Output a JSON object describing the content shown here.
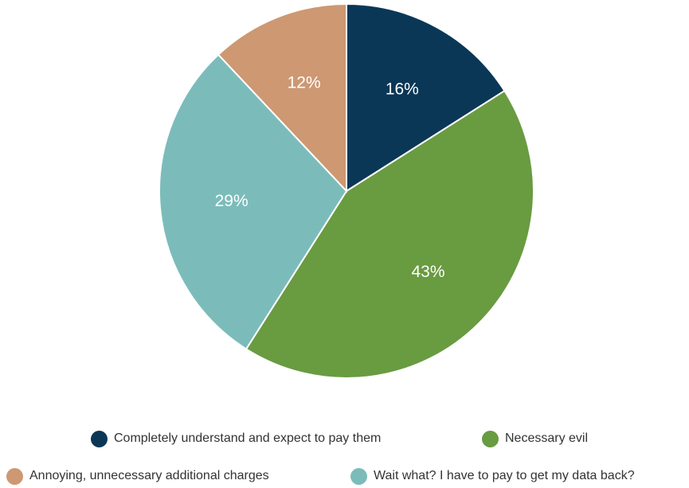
{
  "chart_data": {
    "type": "pie",
    "title": "",
    "start_angle_deg": 0,
    "direction": "clockwise",
    "slices": [
      {
        "label": "Completely understand and expect to pay them",
        "value": 16,
        "display": "16%",
        "color": "#0b3756"
      },
      {
        "label": "Necessary evil",
        "value": 43,
        "display": "43%",
        "color": "#699b41"
      },
      {
        "label": "Wait what? I have to pay to get my data back?",
        "value": 29,
        "display": "29%",
        "color": "#7bbcbb"
      },
      {
        "label": "Annoying, unnecessary additional charges",
        "value": 12,
        "display": "12%",
        "color": "#cd9872"
      }
    ],
    "legend_placement": "bottom"
  }
}
